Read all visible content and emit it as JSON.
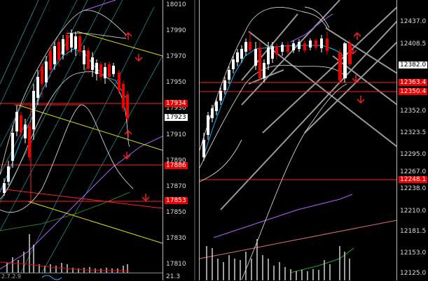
{
  "left_chart": {
    "axis_ticks": [
      "18010",
      "17990",
      "17970",
      "17950",
      "17930",
      "17910",
      "17890",
      "17870",
      "17850",
      "17830",
      "17810"
    ],
    "bottom_axis_value": "21.3",
    "bottom_labels": "2.7.2.9",
    "price_tags": [
      {
        "text": "17934",
        "style": "red"
      },
      {
        "text": "17923",
        "style": "white"
      },
      {
        "text": "17886",
        "style": "red"
      },
      {
        "text": "17853",
        "style": "red"
      }
    ]
  },
  "right_chart": {
    "axis_ticks": [
      "12437.0",
      "12408.5",
      "12352.0",
      "12323.5",
      "12295.0",
      "12267.0",
      "12238.0",
      "12210.0",
      "12181.5",
      "12153.0",
      "12125.0"
    ],
    "price_tags": [
      {
        "text": "12382.0",
        "style": "white"
      },
      {
        "text": "12363.4",
        "style": "red"
      },
      {
        "text": "12350.4",
        "style": "red"
      },
      {
        "text": "12248.1",
        "style": "red"
      }
    ]
  },
  "colors": {
    "background": "#000000",
    "bull_candle": "#ffffff",
    "bear_candle": "#e00000",
    "level_line": "#ff2020",
    "channel_line": "#e0e000",
    "trend_gray": "#9a9a9a",
    "bollinger": "#d0d0d0",
    "ma_blue": "#00b7ff",
    "ma_magenta": "#b060ff"
  },
  "icons": [
    "arrow-up-icon",
    "arrow-down-icon"
  ]
}
